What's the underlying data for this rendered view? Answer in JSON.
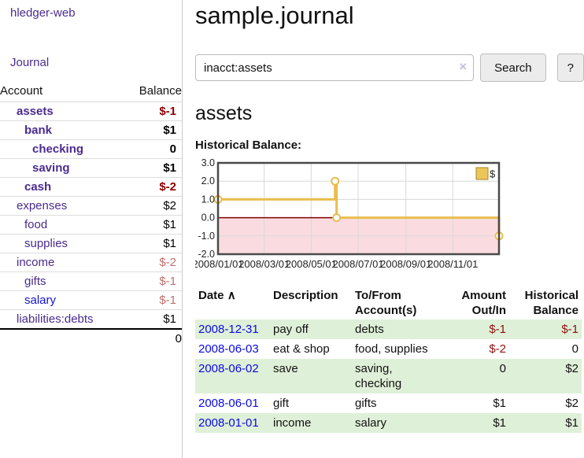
{
  "app": {
    "brand": "hledger-web",
    "nav_journal": "Journal"
  },
  "sidebar": {
    "table_headers": {
      "account": "Account",
      "balance": "Balance"
    },
    "accounts": [
      {
        "name": "assets",
        "balance": "$-1",
        "indent": 0,
        "emphasis": "bold",
        "link": "purple",
        "balance_style": "neg-strong"
      },
      {
        "name": "bank",
        "balance": "$1",
        "indent": 1,
        "emphasis": "bold",
        "link": "purple",
        "balance_style": "strong"
      },
      {
        "name": "checking",
        "balance": "0",
        "indent": 2,
        "emphasis": "bold",
        "link": "purple",
        "balance_style": "strong"
      },
      {
        "name": "saving",
        "balance": "$1",
        "indent": 2,
        "emphasis": "bold",
        "link": "purple",
        "balance_style": "strong"
      },
      {
        "name": "cash",
        "balance": "$-2",
        "indent": 1,
        "emphasis": "bold",
        "link": "purple",
        "balance_style": "neg-strong"
      },
      {
        "name": "expenses",
        "balance": "$2",
        "indent": 0,
        "emphasis": "normal",
        "link": "purple",
        "balance_style": "plain"
      },
      {
        "name": "food",
        "balance": "$1",
        "indent": 1,
        "emphasis": "normal",
        "link": "purple",
        "balance_style": "plain"
      },
      {
        "name": "supplies",
        "balance": "$1",
        "indent": 1,
        "emphasis": "normal",
        "link": "purple",
        "balance_style": "plain"
      },
      {
        "name": "income",
        "balance": "$-2",
        "indent": 0,
        "emphasis": "normal",
        "link": "purple",
        "balance_style": "neg-soft"
      },
      {
        "name": "gifts",
        "balance": "$-1",
        "indent": 1,
        "emphasis": "normal",
        "link": "purple",
        "balance_style": "neg-soft"
      },
      {
        "name": "salary",
        "balance": "$-1",
        "indent": 1,
        "emphasis": "normal",
        "link": "blue",
        "balance_style": "neg-soft"
      },
      {
        "name": "liabilities:debts",
        "balance": "$1",
        "indent": 0,
        "emphasis": "normal",
        "link": "purple",
        "balance_style": "plain"
      }
    ],
    "total": "0"
  },
  "header": {
    "title": "sample.journal"
  },
  "search": {
    "value": "inacct:assets",
    "clear_icon": "×",
    "button": "Search",
    "help_button": "?"
  },
  "account_page": {
    "heading": "assets",
    "chart_label": "Historical Balance:"
  },
  "chart_data": {
    "type": "line",
    "step": true,
    "title": "Historical Balance:",
    "series": [
      {
        "name": "$",
        "color": "#E9BE4D",
        "points": [
          [
            "2008-01-01",
            1
          ],
          [
            "2008-06-01",
            2
          ],
          [
            "2008-06-03",
            0
          ],
          [
            "2008-12-31",
            -1
          ]
        ]
      }
    ],
    "ylim": [
      -2,
      3
    ],
    "yticks": [
      "3.0",
      "2.0",
      "1.0",
      "0.0",
      "-1.0",
      "-2.0"
    ],
    "ytick_values": [
      3,
      2,
      1,
      0,
      -1,
      -2
    ],
    "xticks": [
      "2008/01/01",
      "2008/03/01",
      "2008/05/01",
      "2008/07/01",
      "2008/09/01",
      "2008/11/01"
    ],
    "x_start": "2008-01-01",
    "x_end": "2008-12-31",
    "legend": {
      "label": "$",
      "position": "top-right",
      "swatch_fill": "#EBC65A",
      "swatch_border": "#A8861E"
    },
    "negative_fill": "#FADCE0",
    "zero_line_color": "#7F0000",
    "grid_color": "#D8D8D8",
    "border_color": "#4A4A4A",
    "grid": true
  },
  "register": {
    "columns": [
      "Date",
      "Description",
      "To/From Account(s)",
      "Amount Out/In",
      "Historical Balance"
    ],
    "sort_icon": "∧",
    "rows": [
      {
        "date": "2008-12-31",
        "description": "pay off",
        "accounts": "debts",
        "amount": "$-1",
        "amount_negative": true,
        "balance": "$-1",
        "balance_negative": true
      },
      {
        "date": "2008-06-03",
        "description": "eat & shop",
        "accounts": "food, supplies",
        "amount": "$-2",
        "amount_negative": true,
        "balance": "0",
        "balance_negative": false
      },
      {
        "date": "2008-06-02",
        "description": "save",
        "accounts": "saving, checking",
        "amount": "0",
        "amount_negative": false,
        "balance": "$2",
        "balance_negative": false
      },
      {
        "date": "2008-06-01",
        "description": "gift",
        "accounts": "gifts",
        "amount": "$1",
        "amount_negative": false,
        "balance": "$2",
        "balance_negative": false
      },
      {
        "date": "2008-01-01",
        "description": "income",
        "accounts": "salary",
        "amount": "$1",
        "amount_negative": false,
        "balance": "$1",
        "balance_negative": false
      }
    ]
  },
  "colors": {
    "link_purple": "#4B2B8F",
    "link_blue": "#1414D2",
    "date_link_blue": "#0A0AE6",
    "negative_strong": "#8B0000",
    "negative_soft": "#BE6F6C",
    "row_stripe_green": "#DFF0D8"
  }
}
